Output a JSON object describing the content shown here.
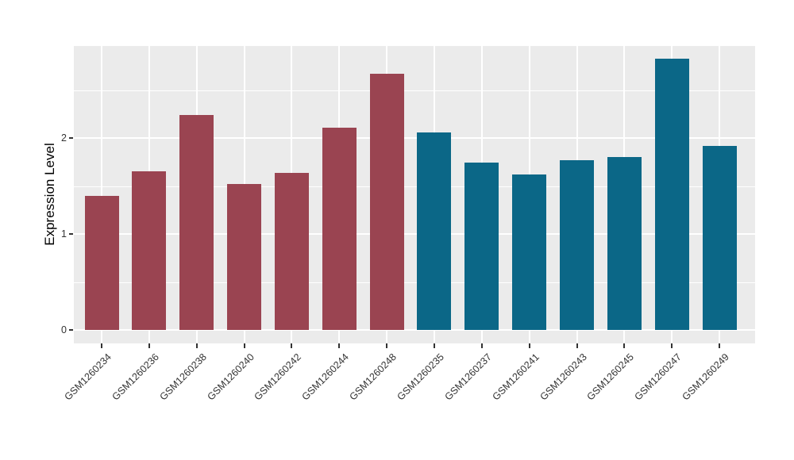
{
  "figure": {
    "background": "#FFFFFF",
    "panel_background": "#EBEBEB",
    "grid_color": "#FFFFFF",
    "tick_mark_color": "#333333",
    "axis_text_color": "#333333",
    "axis_title_color": "#000000"
  },
  "chart_data": {
    "type": "bar",
    "title": "",
    "xlabel": "",
    "ylabel": "Expression Level",
    "legend": "none",
    "grid": "on",
    "x_tick_rotation_deg": 45,
    "categories": [
      "GSM1260234",
      "GSM1260236",
      "GSM1260238",
      "GSM1260240",
      "GSM1260242",
      "GSM1260244",
      "GSM1260248",
      "GSM1260235",
      "GSM1260237",
      "GSM1260241",
      "GSM1260243",
      "GSM1260245",
      "GSM1260247",
      "GSM1260249"
    ],
    "values": [
      1.4,
      1.65,
      2.24,
      1.52,
      1.64,
      2.11,
      2.67,
      2.06,
      1.74,
      1.62,
      1.77,
      1.8,
      2.83,
      1.92
    ],
    "bar_colors": [
      "#9A4451",
      "#9A4451",
      "#9A4451",
      "#9A4451",
      "#9A4451",
      "#9A4451",
      "#9A4451",
      "#0B6787",
      "#0B6787",
      "#0B6787",
      "#0B6787",
      "#0B6787",
      "#0B6787",
      "#0B6787"
    ],
    "color_groups": {
      "maroon": "#9A4451",
      "teal": "#0B6787"
    },
    "y_ticks": [
      0,
      1,
      2
    ],
    "y_minor_gridlines": [
      0.5,
      1.5,
      2.5
    ],
    "ylim": [
      -0.14,
      2.96
    ]
  }
}
